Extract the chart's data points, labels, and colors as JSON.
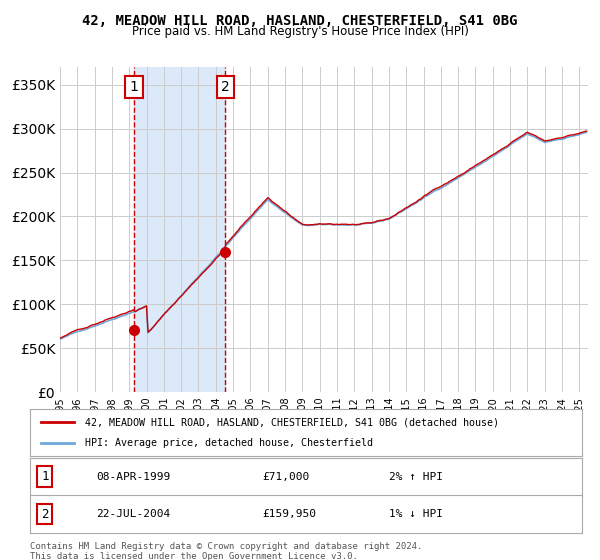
{
  "title": "42, MEADOW HILL ROAD, HASLAND, CHESTERFIELD, S41 0BG",
  "subtitle": "Price paid vs. HM Land Registry's House Price Index (HPI)",
  "legend_line1": "42, MEADOW HILL ROAD, HASLAND, CHESTERFIELD, S41 0BG (detached house)",
  "legend_line2": "HPI: Average price, detached house, Chesterfield",
  "sale1_date": "08-APR-1999",
  "sale1_price": 71000,
  "sale1_hpi": "2% ↑ HPI",
  "sale1_year": 1999.27,
  "sale2_date": "22-JUL-2004",
  "sale2_price": 159950,
  "sale2_hpi": "1% ↓ HPI",
  "sale2_year": 2004.55,
  "copyright": "Contains HM Land Registry data © Crown copyright and database right 2024.\nThis data is licensed under the Open Government Licence v3.0.",
  "hpi_color": "#6fa8dc",
  "price_color": "#cc0000",
  "marker_color": "#cc0000",
  "bg_color": "#ffffff",
  "grid_color": "#cccccc",
  "shade_color": "#dce9f8",
  "dashed_color": "#cc0000",
  "ylim": [
    0,
    370000
  ],
  "xlim_start": 1995,
  "xlim_end": 2025.5,
  "ytick_step": 50000
}
